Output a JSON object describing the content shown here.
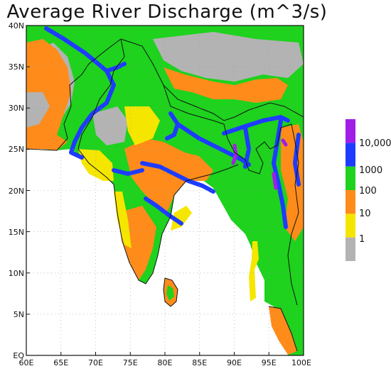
{
  "title": "Average River Discharge (m^3/s)",
  "map": {
    "lon_range": [
      60,
      100
    ],
    "lat_range": [
      0,
      40
    ],
    "x_ticks": [
      "60E",
      "65E",
      "70E",
      "75E",
      "80E",
      "85E",
      "90E",
      "95E",
      "100E"
    ],
    "y_ticks": [
      "EQ",
      "5N",
      "10N",
      "15N",
      "20N",
      "25N",
      "30N",
      "35N",
      "40N"
    ]
  },
  "legend": {
    "labels": [
      "1",
      "10",
      "100",
      "1000",
      "10,000"
    ],
    "colors": [
      "#b3b3b3",
      "#f5e600",
      "#ff8c1a",
      "#1ed21e",
      "#1e3cff",
      "#a01ee6"
    ]
  }
}
